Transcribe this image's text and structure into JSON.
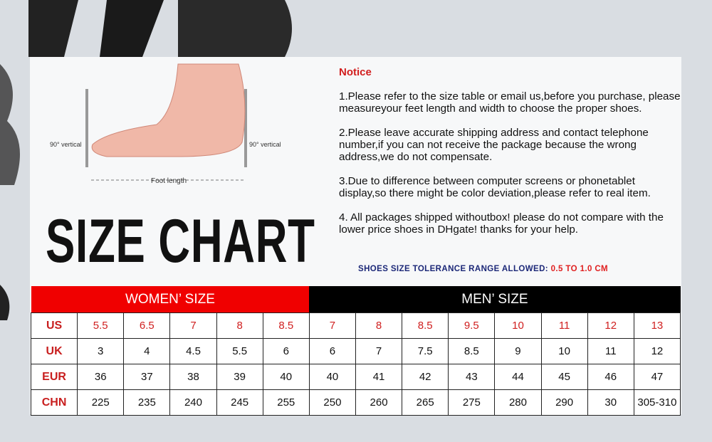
{
  "illustration": {
    "left_label": "90° vertical",
    "right_label": "90° vertical",
    "length_label": "Foot length"
  },
  "title": "SIZE CHART",
  "notice": {
    "heading": "Notice",
    "items": [
      "1.Please refer to the size table or email us,before you purchase, please measureyour   feet length and width to choose the proper shoes.",
      "2.Please leave accurate shipping address and contact telephone number,if you can  not receive the package because the wrong address,we do not compensate.",
      "3.Due to difference between computer screens or phonetablet display,so there might   be color deviation,please refer to real item.",
      "4. All packages shipped withoutbox! please do not compare with the lower price shoes   in DHgate! thanks for your help."
    ],
    "tolerance_label": "SHOES SIZE TOLERANCE RANGE ALLOWED:",
    "tolerance_value": "0.5 TO 1.0 CM"
  },
  "table": {
    "women_header": "WOMEN’  SIZE",
    "men_header": "MEN’  SIZE",
    "rows": [
      {
        "label": "US",
        "values": [
          "5.5",
          "6.5",
          "7",
          "8",
          "8.5",
          "7",
          "8",
          "8.5",
          "9.5",
          "10",
          "11",
          "12",
          "13"
        ]
      },
      {
        "label": "UK",
        "values": [
          "3",
          "4",
          "4.5",
          "5.5",
          "6",
          "6",
          "7",
          "7.5",
          "8.5",
          "9",
          "10",
          "11",
          "12"
        ]
      },
      {
        "label": "EUR",
        "values": [
          "36",
          "37",
          "38",
          "39",
          "40",
          "40",
          "41",
          "42",
          "43",
          "44",
          "45",
          "46",
          "47"
        ]
      },
      {
        "label": "CHN",
        "values": [
          "225",
          "235",
          "240",
          "245",
          "255",
          "250",
          "260",
          "265",
          "275",
          "280",
          "290",
          "30",
          "305-310"
        ]
      }
    ]
  },
  "colors": {
    "accent_red": "#f00000",
    "navy": "#1c2878",
    "header_black": "#000000"
  }
}
